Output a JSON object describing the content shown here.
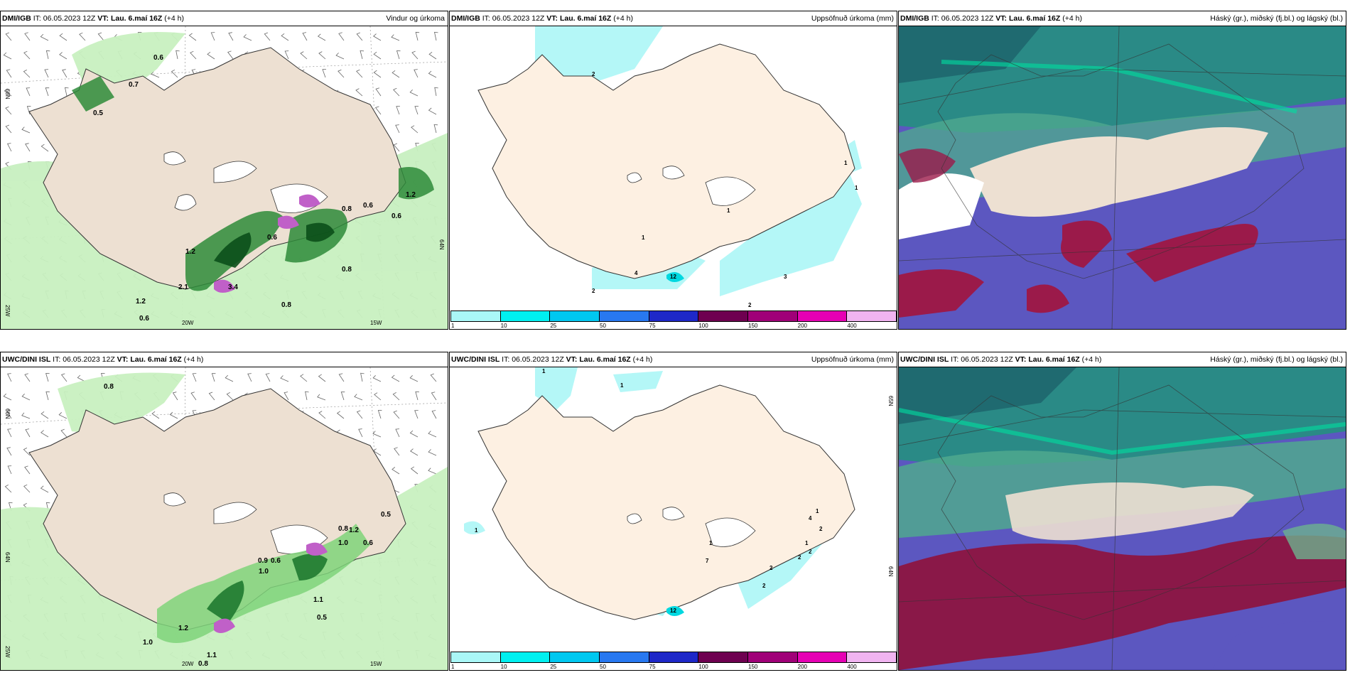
{
  "panels": {
    "p1": {
      "model": "DMI/IGB",
      "it_label": "IT:",
      "it_value": "06.05.2023 12Z",
      "vt_label": "VT:",
      "vt_value": "Lau. 6.maí 16Z",
      "offset": "(+4 h)",
      "title": "Vindur og úrkoma"
    },
    "p2": {
      "model": "DMI/IGB",
      "it_label": "IT:",
      "it_value": "06.05.2023 12Z",
      "vt_label": "VT:",
      "vt_value": "Lau. 6.maí 16Z",
      "offset": "(+4 h)",
      "title": "Uppsöfnuð úrkoma (mm)"
    },
    "p3": {
      "model": "DMI/IGB",
      "it_label": "IT:",
      "it_value": "06.05.2023 12Z",
      "vt_label": "VT:",
      "vt_value": "Lau. 6.maí 16Z",
      "offset": "(+4 h)",
      "title": "Háský (gr.), miðský (fj.bl.) og lágský (bl.)"
    },
    "p4": {
      "model": "UWC/DINI ISL",
      "it_label": "IT:",
      "it_value": "06.05.2023 12Z",
      "vt_label": "VT:",
      "vt_value": "Lau. 6.maí 16Z",
      "offset": "(+4 h)",
      "title": ""
    },
    "p5": {
      "model": "UWC/DINI ISL",
      "it_label": "IT:",
      "it_value": "06.05.2023 12Z",
      "vt_label": "VT:",
      "vt_value": "Lau. 6.maí 16Z",
      "offset": "(+4 h)",
      "title": "Uppsöfnuð úrkoma (mm)"
    },
    "p6": {
      "model": "UWC/DINI ISL",
      "it_label": "IT:",
      "it_value": "06.05.2023 12Z",
      "vt_label": "VT:",
      "vt_value": "Lau. 6.maí 16Z",
      "offset": "(+4 h)",
      "title": "Háský (gr.), miðský (fj.bl.) og lágský (bl.)"
    }
  },
  "axes": {
    "lat66": "66N",
    "lat64": "64N",
    "lat64b": "64N",
    "lat64c": "64N",
    "lat65": "65N",
    "lon25": "25W",
    "lon20": "20W",
    "lon15": "15W"
  },
  "colorbar": {
    "ticks": [
      "1",
      "10",
      "25",
      "50",
      "75",
      "100",
      "150",
      "200",
      "400"
    ],
    "colors": [
      "#aaf7f7",
      "#00f0f0",
      "#00c8f0",
      "#2878f0",
      "#1e28c8",
      "#6e0050",
      "#a00078",
      "#e600b4",
      "#f0b4f0"
    ]
  },
  "precip_labels_top": [
    "0.6",
    "0.7",
    "0.5",
    "1.2",
    "0.6",
    "0.6",
    "0.6",
    "0.8",
    "1.2",
    "2.1",
    "3.4",
    "0.8",
    "1.2",
    "0.6",
    "0.8"
  ],
  "precip_labels_bottom": [
    "0.8",
    "0.8",
    "1.2",
    "0.9",
    "0.6",
    "1.0",
    "0.5",
    "0.6",
    "1.0",
    "1.1",
    "0.5",
    "1.0",
    "1.2",
    "1.1",
    "0.8"
  ],
  "accum_labels_top": [
    "2",
    "1",
    "1",
    "1",
    "1",
    "2",
    "4",
    "12",
    "2",
    "3"
  ],
  "accum_labels_bottom": [
    "1",
    "1",
    "1",
    "1",
    "7",
    "12",
    "2",
    "2",
    "2",
    "4",
    "1",
    "2",
    "1",
    "2"
  ]
}
